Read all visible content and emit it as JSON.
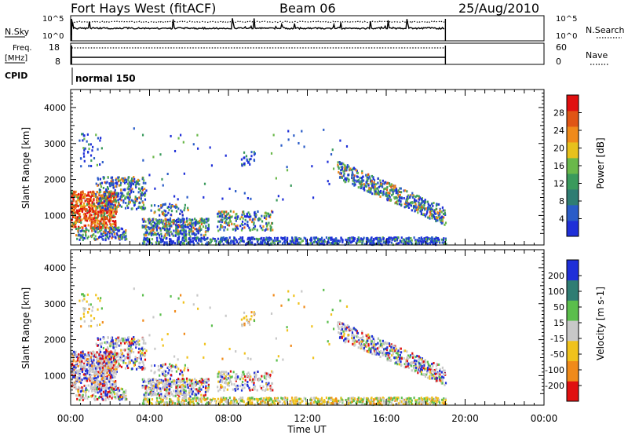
{
  "header": {
    "station": "Fort Hays West (fitACF)",
    "beam": "Beam 06",
    "date": "25/Aug/2010"
  },
  "noise_panel": {
    "left_label": "N.Sky",
    "right_label": "N.Search",
    "ticks_left": [
      "10^5",
      "10^0"
    ],
    "ticks_right": [
      "10^5",
      "10^0"
    ]
  },
  "freq_panel": {
    "left_label_1": "Freq.",
    "left_label_2": "[MHz]",
    "right_label": "Nave",
    "ticks_left": [
      "18",
      "8"
    ],
    "ticks_right": [
      "60",
      "0"
    ]
  },
  "cpid": {
    "label": "CPID",
    "value": "normal 150"
  },
  "x_axis": {
    "label": "Time UT",
    "ticks": [
      "00:00",
      "04:00",
      "08:00",
      "12:00",
      "16:00",
      "20:00",
      "00:00"
    ]
  },
  "colors": {
    "power": [
      "#1f2fd8",
      "#2a5cc8",
      "#2f7d73",
      "#3a9a5c",
      "#6ab84a",
      "#e7c11c",
      "#f08a1a",
      "#e05515",
      "#e01010"
    ],
    "velocity": [
      "#1f2fd8",
      "#2f7d73",
      "#5bbe4c",
      "#c8c8c8",
      "#f0c21c",
      "#f08a1a",
      "#e01010"
    ]
  },
  "chart_data": [
    {
      "type": "heatmap",
      "title": "Power",
      "xlabel": "",
      "ylabel": "Slant Range [km]",
      "y_ticks": [
        "1000",
        "2000",
        "3000",
        "4000"
      ],
      "xlim_hours": [
        0,
        24
      ],
      "ylim_km": [
        180,
        4500
      ],
      "colorbar_label": "Power [dB]",
      "colorbar_ticks": [
        "4",
        "8",
        "12",
        "16",
        "20",
        "24",
        "28"
      ],
      "colorbar_range": [
        0,
        30
      ]
    },
    {
      "type": "heatmap",
      "title": "Velocity",
      "xlabel": "Time UT",
      "ylabel": "Slant Range [km]",
      "y_ticks": [
        "1000",
        "2000",
        "3000",
        "4000"
      ],
      "xlim_hours": [
        0,
        24
      ],
      "ylim_km": [
        180,
        4500
      ],
      "colorbar_label": "Velocity [m s-1]",
      "colorbar_ticks": [
        "200",
        "100",
        "50",
        "15",
        "-15",
        "-50",
        "-100",
        "-200"
      ]
    }
  ]
}
